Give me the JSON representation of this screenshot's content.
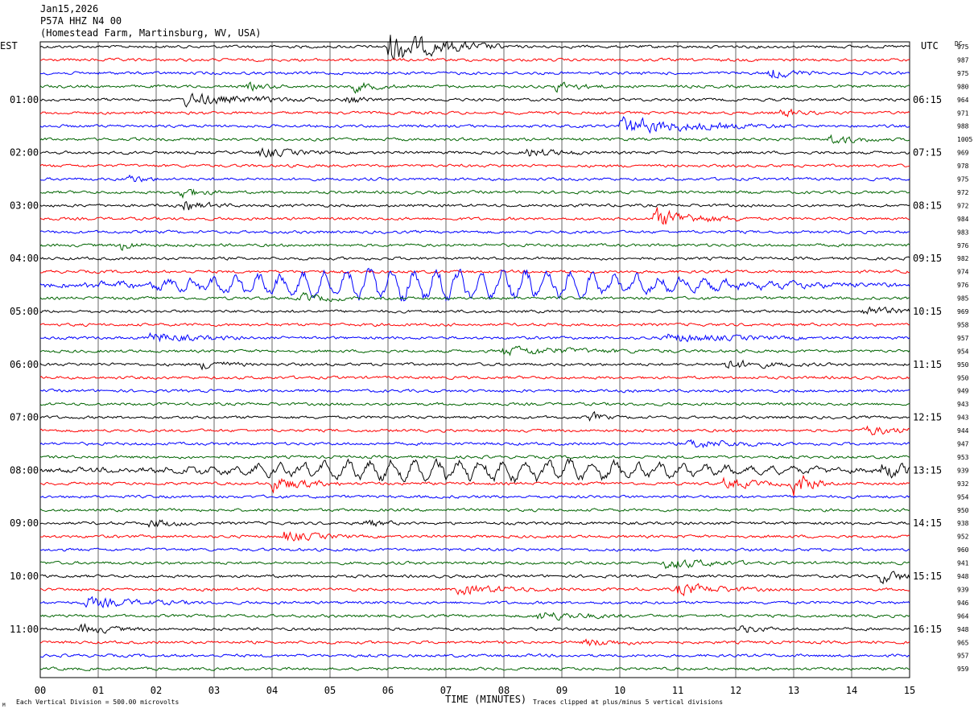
{
  "header": {
    "date": "Jan15,2026",
    "station": "P57A HHZ N4 00",
    "location": "(Homestead Farm, Martinsburg, WV, USA)"
  },
  "axes": {
    "left_label": "EST",
    "right_label": "UTC",
    "dc_label": "DC",
    "xlabel": "TIME (MINUTES)",
    "x_ticks": [
      "00",
      "01",
      "02",
      "03",
      "04",
      "05",
      "06",
      "07",
      "08",
      "09",
      "10",
      "11",
      "12",
      "13",
      "14",
      "15"
    ],
    "left_hours": [
      "01:00",
      "02:00",
      "03:00",
      "04:00",
      "05:00",
      "06:00",
      "07:00",
      "08:00",
      "09:00",
      "10:00",
      "11:00"
    ],
    "right_hours": [
      "06:15",
      "07:15",
      "08:15",
      "09:15",
      "10:15",
      "11:15",
      "12:15",
      "13:15",
      "14:15",
      "15:15",
      "16:15"
    ]
  },
  "footer": {
    "scale_note": "Each Vertical Division =  500.00 microvolts",
    "clip_note": "Traces clipped at plus/minus 5 vertical divisions",
    "corner_mark": "M"
  },
  "chart_data": {
    "type": "line",
    "x_range_minutes": [
      0,
      15
    ],
    "trace_colors": [
      "#000000",
      "#ff0000",
      "#0000ff",
      "#006400"
    ],
    "dc_values": [
      975,
      987,
      975,
      980,
      964,
      971,
      988,
      1005,
      969,
      978,
      975,
      972,
      972,
      984,
      983,
      976,
      982,
      974,
      976,
      985,
      969,
      958,
      957,
      954,
      950,
      950,
      949,
      943,
      943,
      944,
      947,
      953,
      939,
      932,
      954,
      950,
      938,
      952,
      960,
      941,
      948,
      939,
      946,
      964,
      948,
      965,
      957,
      959
    ],
    "events": [
      {
        "trace": 0,
        "minute": 6.0,
        "amp": 5.0,
        "dur": 1.0
      },
      {
        "trace": 2,
        "minute": 12.6,
        "amp": 1.8,
        "dur": 0.4
      },
      {
        "trace": 3,
        "minute": 3.6,
        "amp": 1.2,
        "dur": 0.3
      },
      {
        "trace": 3,
        "minute": 5.4,
        "amp": 1.5,
        "dur": 0.4
      },
      {
        "trace": 3,
        "minute": 8.9,
        "amp": 1.3,
        "dur": 0.5
      },
      {
        "trace": 4,
        "minute": 2.5,
        "amp": 1.8,
        "dur": 1.2
      },
      {
        "trace": 4,
        "minute": 5.3,
        "amp": 1.4,
        "dur": 0.3
      },
      {
        "trace": 5,
        "minute": 12.8,
        "amp": 1.5,
        "dur": 0.3
      },
      {
        "trace": 6,
        "minute": 10.0,
        "amp": 2.5,
        "dur": 1.5
      },
      {
        "trace": 7,
        "minute": 13.6,
        "amp": 1.5,
        "dur": 0.5
      },
      {
        "trace": 8,
        "minute": 3.8,
        "amp": 1.4,
        "dur": 0.6
      },
      {
        "trace": 8,
        "minute": 8.4,
        "amp": 1.3,
        "dur": 0.6
      },
      {
        "trace": 10,
        "minute": 1.5,
        "amp": 1.4,
        "dur": 0.3
      },
      {
        "trace": 11,
        "minute": 2.4,
        "amp": 1.8,
        "dur": 0.4
      },
      {
        "trace": 12,
        "minute": 2.5,
        "amp": 1.5,
        "dur": 0.4
      },
      {
        "trace": 13,
        "minute": 10.6,
        "amp": 3.0,
        "dur": 0.8
      },
      {
        "trace": 15,
        "minute": 1.4,
        "amp": 1.4,
        "dur": 0.3
      },
      {
        "trace": 18,
        "minute": 7.0,
        "amp": 2.5,
        "dur": 8.0
      },
      {
        "trace": 19,
        "minute": 4.5,
        "amp": 1.3,
        "dur": 0.5
      },
      {
        "trace": 20,
        "minute": 14.2,
        "amp": 1.5,
        "dur": 0.6
      },
      {
        "trace": 22,
        "minute": 1.9,
        "amp": 1.5,
        "dur": 0.8
      },
      {
        "trace": 22,
        "minute": 10.8,
        "amp": 1.3,
        "dur": 1.2
      },
      {
        "trace": 23,
        "minute": 8.0,
        "amp": 1.2,
        "dur": 1.5
      },
      {
        "trace": 24,
        "minute": 2.8,
        "amp": 1.4,
        "dur": 0.4
      },
      {
        "trace": 24,
        "minute": 11.8,
        "amp": 1.4,
        "dur": 0.8
      },
      {
        "trace": 28,
        "minute": 9.5,
        "amp": 1.6,
        "dur": 0.2
      },
      {
        "trace": 29,
        "minute": 14.2,
        "amp": 1.3,
        "dur": 0.8
      },
      {
        "trace": 30,
        "minute": 11.2,
        "amp": 1.4,
        "dur": 0.8
      },
      {
        "trace": 32,
        "minute": 7.5,
        "amp": 1.8,
        "dur": 8.0
      },
      {
        "trace": 32,
        "minute": 14.5,
        "amp": 2.0,
        "dur": 0.8
      },
      {
        "trace": 33,
        "minute": 4.0,
        "amp": 2.5,
        "dur": 0.6
      },
      {
        "trace": 33,
        "minute": 11.8,
        "amp": 1.6,
        "dur": 0.6
      },
      {
        "trace": 33,
        "minute": 13.0,
        "amp": 4.5,
        "dur": 0.3
      },
      {
        "trace": 36,
        "minute": 1.9,
        "amp": 1.5,
        "dur": 0.4
      },
      {
        "trace": 36,
        "minute": 5.6,
        "amp": 1.3,
        "dur": 0.3
      },
      {
        "trace": 37,
        "minute": 4.2,
        "amp": 1.6,
        "dur": 0.6
      },
      {
        "trace": 39,
        "minute": 10.8,
        "amp": 1.6,
        "dur": 0.8
      },
      {
        "trace": 40,
        "minute": 14.5,
        "amp": 1.6,
        "dur": 0.8
      },
      {
        "trace": 41,
        "minute": 11.0,
        "amp": 1.8,
        "dur": 0.8
      },
      {
        "trace": 41,
        "minute": 7.2,
        "amp": 1.4,
        "dur": 1.0
      },
      {
        "trace": 42,
        "minute": 0.8,
        "amp": 1.5,
        "dur": 1.0
      },
      {
        "trace": 43,
        "minute": 8.6,
        "amp": 1.4,
        "dur": 0.8
      },
      {
        "trace": 44,
        "minute": 0.7,
        "amp": 1.4,
        "dur": 0.6
      },
      {
        "trace": 44,
        "minute": 12.1,
        "amp": 1.4,
        "dur": 0.3
      },
      {
        "trace": 45,
        "minute": 9.4,
        "amp": 1.2,
        "dur": 0.6
      }
    ]
  }
}
